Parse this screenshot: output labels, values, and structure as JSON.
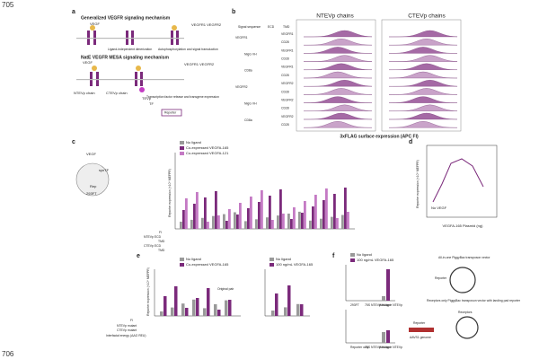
{
  "page_numbers": [
    "705",
    "706"
  ],
  "panel_a": {
    "letter": "a",
    "title1": "Generalized VEGFR signaling mechanism",
    "vegf": "VEGF",
    "receptors": "VEGFR1\nVEGFR2",
    "step1": "Ligand-independent dimerization",
    "step2": "Autophosphorylation and signal transduction",
    "title2": "NatE VEGFR MESA signaling mechanism",
    "ntevp": "NTEVp chain",
    "ctevp": "CTEVp chain",
    "tevp": "TEVp",
    "tf": "TF",
    "step3": "Transcription factor release and transgene expression",
    "reporter": "Reporter"
  },
  "panel_b": {
    "letter": "b",
    "ntevp_title": "NTEVp chains",
    "ctevp_title": "CTEVp chains",
    "header": [
      "Signal sequence",
      "ECD",
      "TMD"
    ],
    "rows": [
      "VEGFR1",
      "CD28",
      "VEGFR1",
      "CD28",
      "VEGFR1",
      "CD28",
      "VEGFR2",
      "CD28",
      "VEGFR2",
      "CD28",
      "VEGFR2",
      "CD28"
    ],
    "groups": [
      "VEGFR1",
      "NIgG VH",
      "CD8a",
      "VEGFR2",
      "NIgG VH",
      "CD8a"
    ],
    "xlabel": "3xFLAG surface expression (APC FI)"
  },
  "panel_c": {
    "letter": "c",
    "legend": [
      "No ligand",
      "Co-expressed VEGFA-165",
      "Co-expressed VEGFA-121"
    ],
    "ylabel": "Reporter expression (×10⁵ MEFPR)",
    "rows": [
      "FI",
      "NTEVp ECD",
      "TMD",
      "CTEVp ECD",
      "TMD"
    ],
    "cell": [
      "VEGF",
      "synTF",
      "Rep",
      "293FT"
    ]
  },
  "panel_d": {
    "letter": "d",
    "xlabel": "VEGFA-165 Plasmid (ng)",
    "ylabel": "Reporter expression (×10⁵ MEFPR)",
    "no_vegf": "No VEGF"
  },
  "panel_e": {
    "letter": "e",
    "legend1": [
      "No ligand",
      "Co-expressed VEGFA-165"
    ],
    "legend2": [
      "No ligand",
      "100 ng/mL VEGFA-165"
    ],
    "original_pair": "Original pair",
    "rows": [
      "FI",
      "NTEVp mutant",
      "CTEVp mutant",
      "Interfacial energy (ΔΔG REU)"
    ],
    "ylabel": "Reporter expression (×10⁵ MEFPR)"
  },
  "panel_f": {
    "letter": "f",
    "legend": [
      "No ligand",
      "100 ng/mL VEGFA-165"
    ],
    "cats": [
      "293FT",
      "75S NTEVp mutant",
      "Wild-type NTEVp"
    ],
    "cats2": [
      "Reporter only",
      "75S NTEVp mutant",
      "Wild-type NTEVp"
    ],
    "vector1": "All-in-one PiggyBac transposon vector",
    "vector2": "Receptors only PiggyBac transposon vector with landing pad reporter",
    "reporter": "Reporter",
    "receptors": "Receptors",
    "aavs1": "AAVS1 genome"
  }
}
